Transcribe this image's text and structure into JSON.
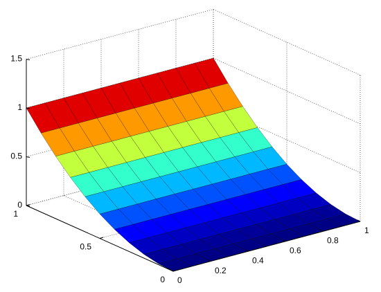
{
  "chart_data": {
    "type": "surface",
    "colormap": "jet",
    "grid": true,
    "x": [
      0,
      0.1,
      0.2,
      0.3,
      0.4,
      0.5,
      0.6,
      0.7,
      0.8,
      0.9,
      1
    ],
    "y": [
      0,
      0.1,
      0.2,
      0.3,
      0.4,
      0.5,
      0.6,
      0.7,
      0.8,
      0.9,
      1
    ],
    "z": [
      [
        0,
        0,
        0,
        0,
        0,
        0,
        0,
        0,
        0,
        0,
        0
      ],
      [
        0.01,
        0.01,
        0.01,
        0.01,
        0.01,
        0.01,
        0.01,
        0.01,
        0.01,
        0.01,
        0.01
      ],
      [
        0.04,
        0.04,
        0.04,
        0.04,
        0.04,
        0.04,
        0.04,
        0.04,
        0.04,
        0.04,
        0.04
      ],
      [
        0.09,
        0.09,
        0.09,
        0.09,
        0.09,
        0.09,
        0.09,
        0.09,
        0.09,
        0.09,
        0.09
      ],
      [
        0.16,
        0.16,
        0.16,
        0.16,
        0.16,
        0.16,
        0.16,
        0.16,
        0.16,
        0.16,
        0.16
      ],
      [
        0.25,
        0.25,
        0.25,
        0.25,
        0.25,
        0.25,
        0.25,
        0.25,
        0.25,
        0.25,
        0.25
      ],
      [
        0.36,
        0.36,
        0.36,
        0.36,
        0.36,
        0.36,
        0.36,
        0.36,
        0.36,
        0.36,
        0.36
      ],
      [
        0.49,
        0.49,
        0.49,
        0.49,
        0.49,
        0.49,
        0.49,
        0.49,
        0.49,
        0.49,
        0.49
      ],
      [
        0.64,
        0.64,
        0.64,
        0.64,
        0.64,
        0.64,
        0.64,
        0.64,
        0.64,
        0.64,
        0.64
      ],
      [
        0.81,
        0.81,
        0.81,
        0.81,
        0.81,
        0.81,
        0.81,
        0.81,
        0.81,
        0.81,
        0.81
      ],
      [
        1,
        1,
        1,
        1,
        1,
        1,
        1,
        1,
        1,
        1,
        1
      ]
    ],
    "xlim": [
      0,
      1
    ],
    "xticks": [
      0,
      0.2,
      0.4,
      0.6,
      0.8,
      1
    ],
    "ylim": [
      0,
      1
    ],
    "yticks": [
      0,
      0.5,
      1
    ],
    "zlim": [
      0,
      1.5
    ],
    "zticks": [
      0,
      0.5,
      1,
      1.5
    ]
  }
}
